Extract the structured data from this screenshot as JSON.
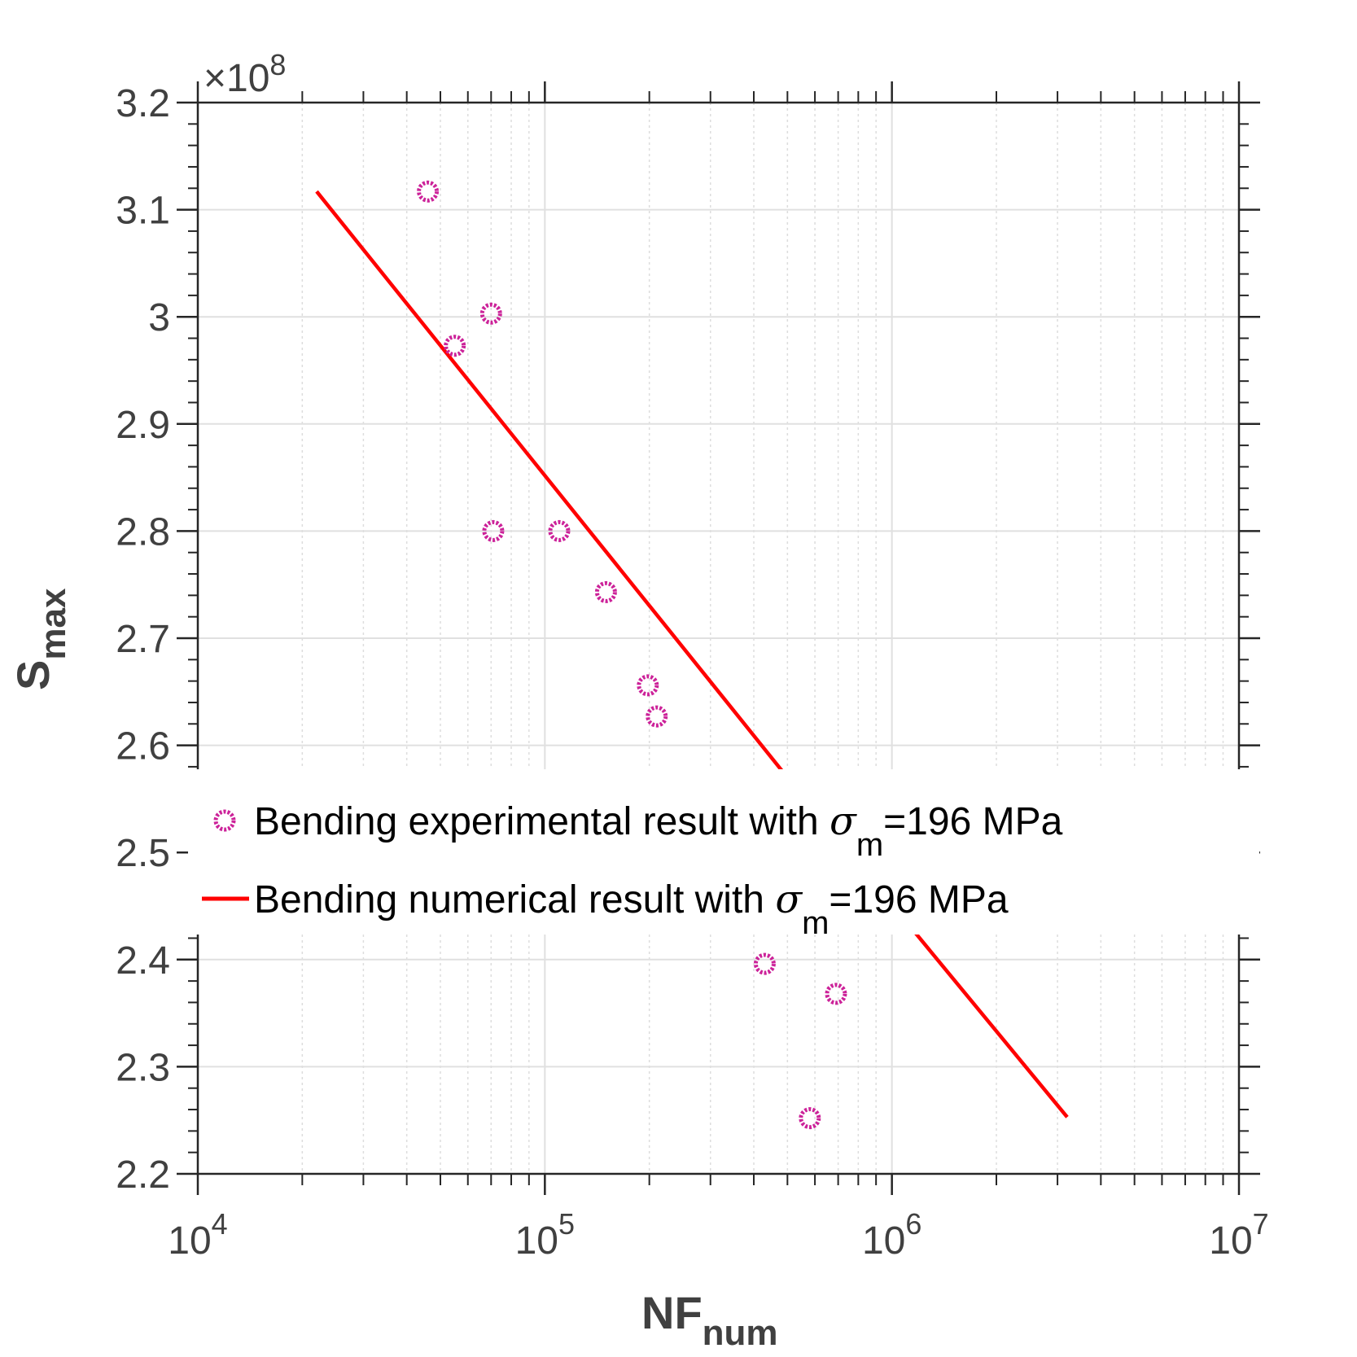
{
  "chart_data": {
    "type": "scatter",
    "title": "",
    "xlabel": "NF",
    "xlabel_sub": "num",
    "ylabel": "S",
    "ylabel_sub": "max",
    "y_multiplier_label": "×10",
    "y_multiplier_exp": "8",
    "xscale": "log",
    "xlim": [
      10000,
      10000000
    ],
    "ylim": [
      2.2,
      3.2
    ],
    "x_ticks": [
      {
        "base": "10",
        "exp": "4",
        "value": 10000
      },
      {
        "base": "10",
        "exp": "5",
        "value": 100000
      },
      {
        "base": "10",
        "exp": "6",
        "value": 1000000
      },
      {
        "base": "10",
        "exp": "7",
        "value": 10000000
      }
    ],
    "y_ticks": [
      "2.2",
      "2.3",
      "2.4",
      "2.5",
      "2.6",
      "2.7",
      "2.8",
      "2.9",
      "3",
      "3.1",
      "3.2"
    ],
    "grid": true,
    "legend_position": "center-right",
    "series": [
      {
        "name": "Bending experimental result with σm=196 MPa",
        "legend_main": "Bending experimental result with ",
        "legend_sigma": "σ",
        "legend_sub": "m",
        "legend_tail": "=196 MPa",
        "kind": "scatter",
        "color": "#CC2299",
        "points": [
          {
            "x": 46000,
            "y": 3.117
          },
          {
            "x": 55000,
            "y": 2.973
          },
          {
            "x": 70000,
            "y": 3.003
          },
          {
            "x": 71000,
            "y": 2.8
          },
          {
            "x": 110000,
            "y": 2.8
          },
          {
            "x": 150000,
            "y": 2.743
          },
          {
            "x": 198000,
            "y": 2.656
          },
          {
            "x": 210000,
            "y": 2.627
          },
          {
            "x": 430000,
            "y": 2.396
          },
          {
            "x": 580000,
            "y": 2.252
          },
          {
            "x": 690000,
            "y": 2.368
          }
        ]
      },
      {
        "name": "Bending numerical result with σm=196 MPa",
        "legend_main": "Bending numerical result with ",
        "legend_sigma": "σ",
        "legend_sub": "m",
        "legend_tail": "=196 MPa",
        "kind": "line",
        "color": "#FF0000",
        "points": [
          {
            "x": 22000,
            "y": 3.117
          },
          {
            "x": 500000,
            "y": 2.57
          },
          {
            "x": 1400000,
            "y": 2.394
          },
          {
            "x": 3200000,
            "y": 2.253
          }
        ]
      }
    ]
  }
}
